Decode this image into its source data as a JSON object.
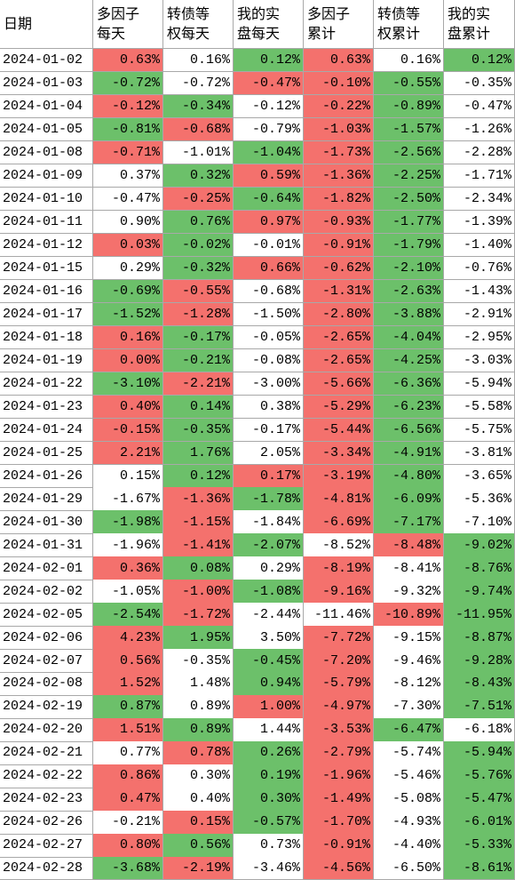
{
  "table": {
    "palette": {
      "r": "#f4716d",
      "g": "#6cc06a",
      "w": "#ffffff"
    },
    "header": [
      [
        "日期"
      ],
      [
        "多因子",
        "每天"
      ],
      [
        "转债等",
        "权每天"
      ],
      [
        "我的实",
        "盘每天"
      ],
      [
        "多因子",
        "累计"
      ],
      [
        "转债等",
        "权累计"
      ],
      [
        "我的实",
        "盘累计"
      ]
    ],
    "rows": [
      [
        "2024-01-02",
        "0.63%",
        "0.16%",
        "0.12%",
        "0.63%",
        "0.16%",
        "0.12%"
      ],
      [
        "2024-01-03",
        "-0.72%",
        "-0.72%",
        "-0.47%",
        "-0.10%",
        "-0.55%",
        "-0.35%"
      ],
      [
        "2024-01-04",
        "-0.12%",
        "-0.34%",
        "-0.12%",
        "-0.22%",
        "-0.89%",
        "-0.47%"
      ],
      [
        "2024-01-05",
        "-0.81%",
        "-0.68%",
        "-0.79%",
        "-1.03%",
        "-1.57%",
        "-1.26%"
      ],
      [
        "2024-01-08",
        "-0.71%",
        "-1.01%",
        "-1.04%",
        "-1.73%",
        "-2.56%",
        "-2.28%"
      ],
      [
        "2024-01-09",
        "0.37%",
        "0.32%",
        "0.59%",
        "-1.36%",
        "-2.25%",
        "-1.71%"
      ],
      [
        "2024-01-10",
        "-0.47%",
        "-0.25%",
        "-0.64%",
        "-1.82%",
        "-2.50%",
        "-2.34%"
      ],
      [
        "2024-01-11",
        "0.90%",
        "0.76%",
        "0.97%",
        "-0.93%",
        "-1.77%",
        "-1.39%"
      ],
      [
        "2024-01-12",
        "0.03%",
        "-0.02%",
        "-0.01%",
        "-0.91%",
        "-1.79%",
        "-1.40%"
      ],
      [
        "2024-01-15",
        "0.29%",
        "-0.32%",
        "0.66%",
        "-0.62%",
        "-2.10%",
        "-0.76%"
      ],
      [
        "2024-01-16",
        "-0.69%",
        "-0.55%",
        "-0.68%",
        "-1.31%",
        "-2.63%",
        "-1.43%"
      ],
      [
        "2024-01-17",
        "-1.52%",
        "-1.28%",
        "-1.50%",
        "-2.80%",
        "-3.88%",
        "-2.91%"
      ],
      [
        "2024-01-18",
        "0.16%",
        "-0.17%",
        "-0.05%",
        "-2.65%",
        "-4.04%",
        "-2.95%"
      ],
      [
        "2024-01-19",
        "0.00%",
        "-0.21%",
        "-0.08%",
        "-2.65%",
        "-4.25%",
        "-3.03%"
      ],
      [
        "2024-01-22",
        "-3.10%",
        "-2.21%",
        "-3.00%",
        "-5.66%",
        "-6.36%",
        "-5.94%"
      ],
      [
        "2024-01-23",
        "0.40%",
        "0.14%",
        "0.38%",
        "-5.29%",
        "-6.23%",
        "-5.58%"
      ],
      [
        "2024-01-24",
        "-0.15%",
        "-0.35%",
        "-0.17%",
        "-5.44%",
        "-6.56%",
        "-5.75%"
      ],
      [
        "2024-01-25",
        "2.21%",
        "1.76%",
        "2.05%",
        "-3.34%",
        "-4.91%",
        "-3.81%"
      ],
      [
        "2024-01-26",
        "0.15%",
        "0.12%",
        "0.17%",
        "-3.19%",
        "-4.80%",
        "-3.65%"
      ],
      [
        "2024-01-29",
        "-1.67%",
        "-1.36%",
        "-1.78%",
        "-4.81%",
        "-6.09%",
        "-5.36%"
      ],
      [
        "2024-01-30",
        "-1.98%",
        "-1.15%",
        "-1.84%",
        "-6.69%",
        "-7.17%",
        "-7.10%"
      ],
      [
        "2024-01-31",
        "-1.96%",
        "-1.41%",
        "-2.07%",
        "-8.52%",
        "-8.48%",
        "-9.02%"
      ],
      [
        "2024-02-01",
        "0.36%",
        "0.08%",
        "0.29%",
        "-8.19%",
        "-8.41%",
        "-8.76%"
      ],
      [
        "2024-02-02",
        "-1.05%",
        "-1.00%",
        "-1.08%",
        "-9.16%",
        "-9.32%",
        "-9.74%"
      ],
      [
        "2024-02-05",
        "-2.54%",
        "-1.72%",
        "-2.44%",
        "-11.46%",
        "-10.89%",
        "-11.95%"
      ],
      [
        "2024-02-06",
        "4.23%",
        "1.95%",
        "3.50%",
        "-7.72%",
        "-9.15%",
        "-8.87%"
      ],
      [
        "2024-02-07",
        "0.56%",
        "-0.35%",
        "-0.45%",
        "-7.20%",
        "-9.46%",
        "-9.28%"
      ],
      [
        "2024-02-08",
        "1.52%",
        "1.48%",
        "0.94%",
        "-5.79%",
        "-8.12%",
        "-8.43%"
      ],
      [
        "2024-02-19",
        "0.87%",
        "0.89%",
        "1.00%",
        "-4.97%",
        "-7.30%",
        "-7.51%"
      ],
      [
        "2024-02-20",
        "1.51%",
        "0.89%",
        "1.44%",
        "-3.53%",
        "-6.47%",
        "-6.18%"
      ],
      [
        "2024-02-21",
        "0.77%",
        "0.78%",
        "0.26%",
        "-2.79%",
        "-5.74%",
        "-5.94%"
      ],
      [
        "2024-02-22",
        "0.86%",
        "0.30%",
        "0.19%",
        "-1.96%",
        "-5.46%",
        "-5.76%"
      ],
      [
        "2024-02-23",
        "0.47%",
        "0.40%",
        "0.30%",
        "-1.49%",
        "-5.08%",
        "-5.47%"
      ],
      [
        "2024-02-26",
        "-0.21%",
        "0.15%",
        "-0.57%",
        "-1.70%",
        "-4.93%",
        "-6.01%"
      ],
      [
        "2024-02-27",
        "0.80%",
        "0.56%",
        "0.73%",
        "-0.91%",
        "-4.40%",
        "-5.33%"
      ],
      [
        "2024-02-28",
        "-3.68%",
        "-2.19%",
        "-3.46%",
        "-4.56%",
        "-6.50%",
        "-8.61%"
      ]
    ],
    "cell_colors": [
      "rwgrwg",
      "gwrrgw",
      "rgwrgw",
      "grwrgw",
      "rwgrgw",
      "wgrrgw",
      "wrgrgw",
      "wgrrgw",
      "rgwrgw",
      "wgrrgw",
      "grwrgw",
      "grwrgw",
      "rgwrgw",
      "rgwrgw",
      "grwrgw",
      "rgwrgw",
      "rgwrgw",
      "rgwrgw",
      "wgrrgw",
      "wrgrgw",
      "grwrgw",
      "wrgwrg",
      "rgwrwg",
      "wrgrwg",
      "grwwrg",
      "rgwrwg",
      "rwgrwg",
      "rwgrwg",
      "gwrrwg",
      "rgwrgw",
      "wrgrwg",
      "rwgrwg",
      "rwgrwg",
      "wrgrwg",
      "rgwrwg",
      "grwrwg"
    ]
  }
}
